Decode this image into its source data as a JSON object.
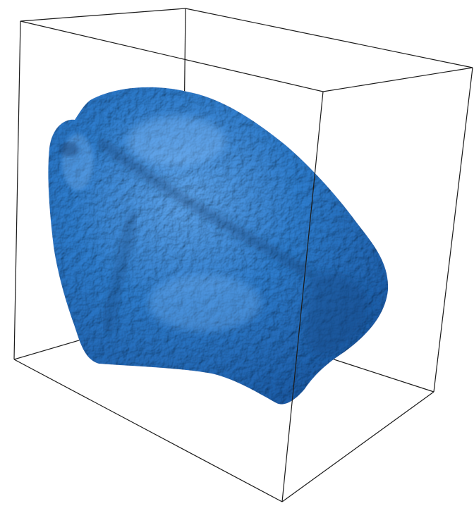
{
  "scene": {
    "background_color": "#ffffff",
    "bounding_box_color": "#1a1a1a",
    "surface_color": "#2f7fd1",
    "surface_highlight_color": "#8cc4ff",
    "surface_shadow_color": "#143f73",
    "object_icon": "isosurface-blob-icon"
  }
}
